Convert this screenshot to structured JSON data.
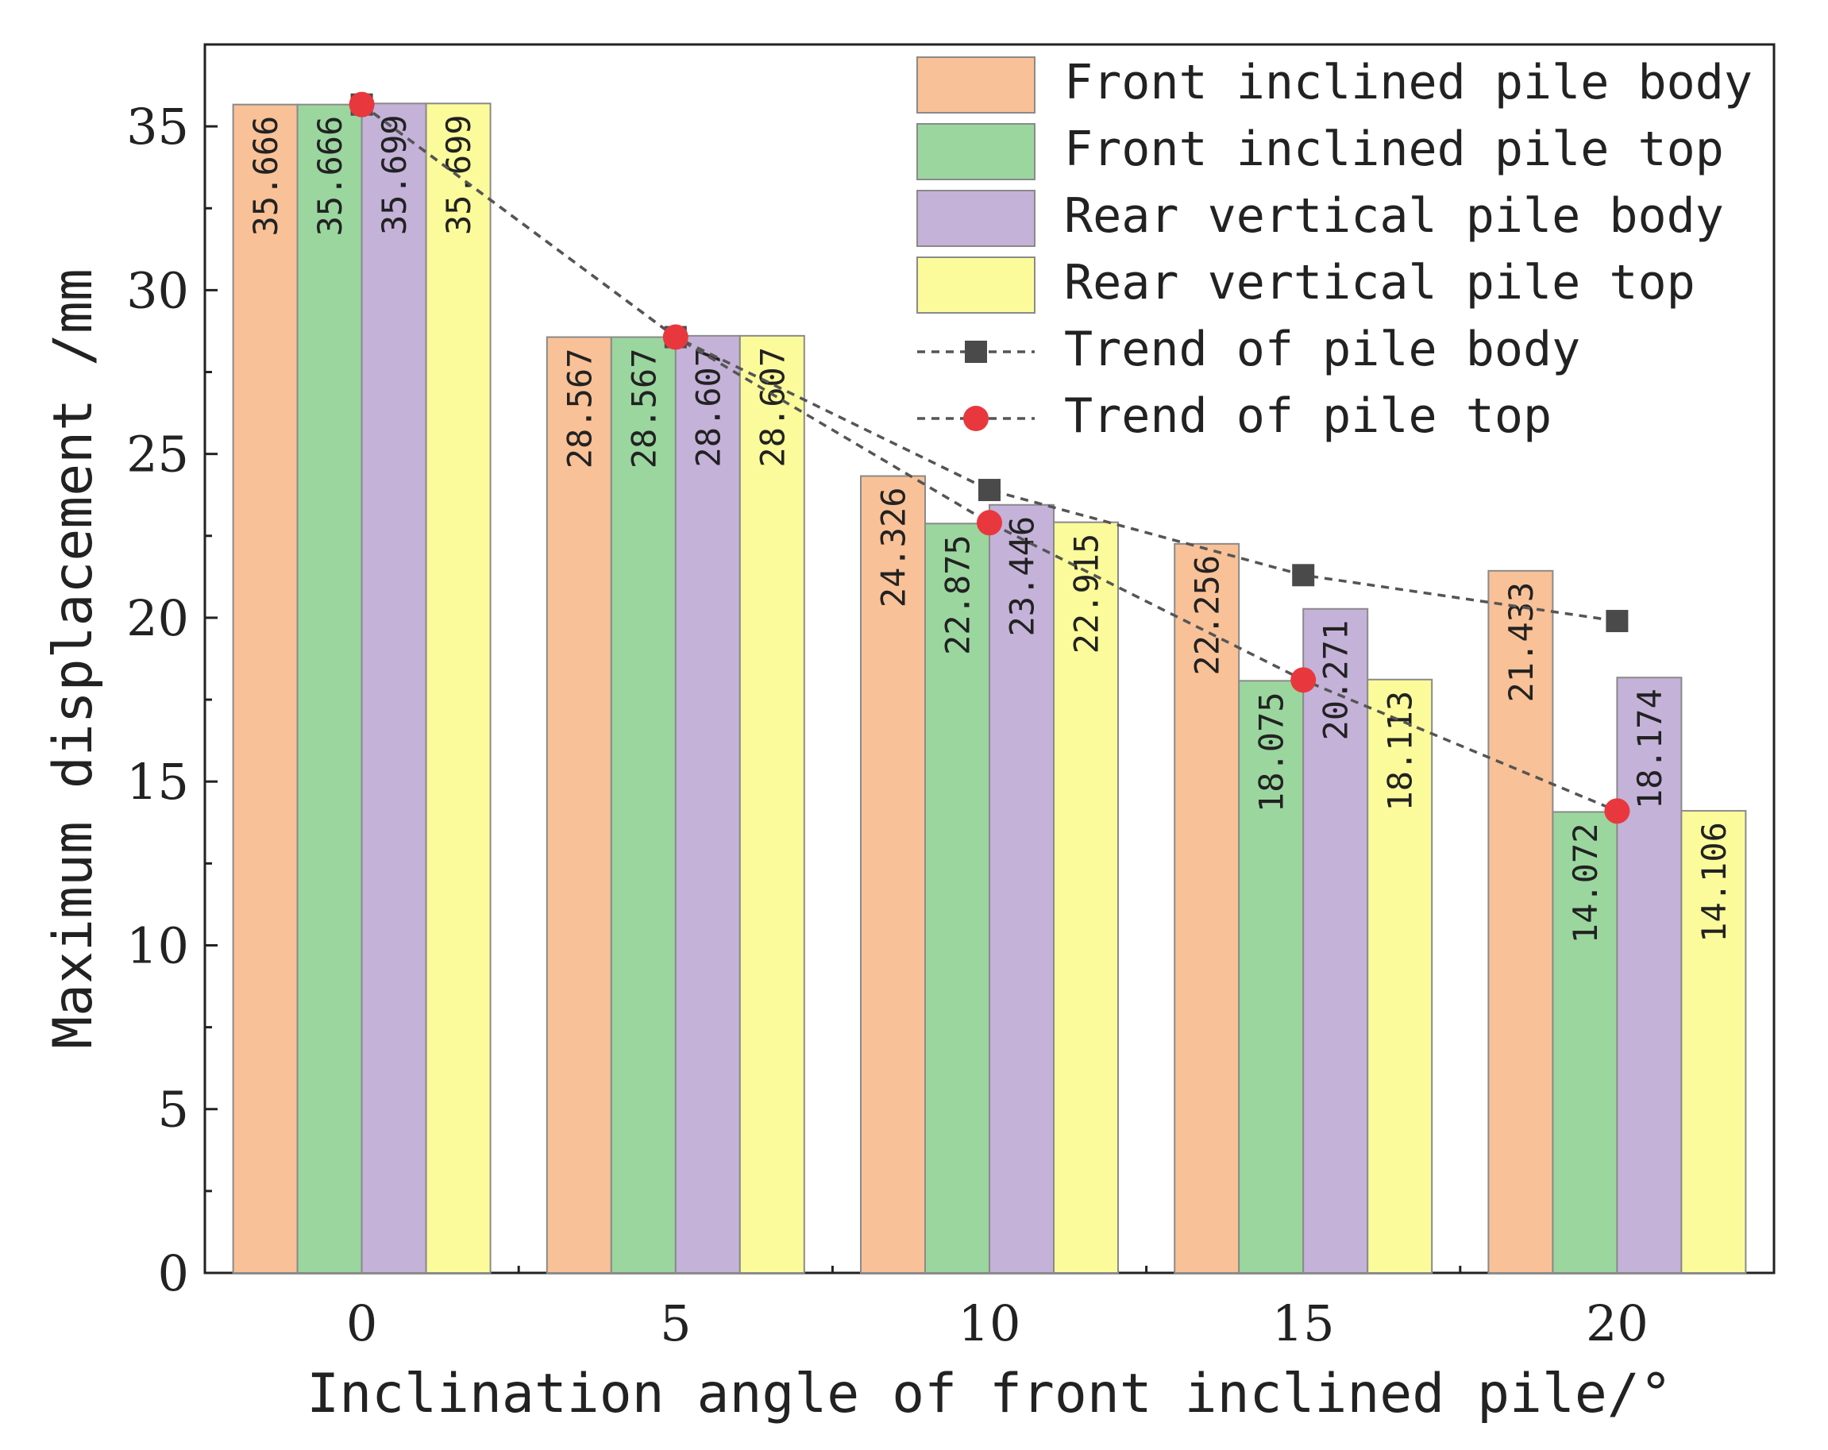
{
  "chart_data": {
    "type": "bar",
    "xlabel": "Inclination angle of front inclined pile/°",
    "ylabel": "Maximum displacement /mm",
    "categories": [
      "0",
      "5",
      "10",
      "15",
      "20"
    ],
    "ylim": [
      0,
      37.5
    ],
    "yticks": [
      0,
      5,
      10,
      15,
      20,
      25,
      30,
      35
    ],
    "grid": false,
    "legend_position": "top-right",
    "series": [
      {
        "name": "Front inclined pile body",
        "color": "#f9c197",
        "values": [
          35.666,
          28.567,
          24.326,
          22.256,
          21.433
        ],
        "labels": [
          "35.666",
          "28.567",
          "24.326",
          "22.256",
          "21.433"
        ]
      },
      {
        "name": "Front inclined pile top",
        "color": "#9bd69f",
        "values": [
          35.666,
          28.567,
          22.875,
          18.075,
          14.072
        ],
        "labels": [
          "35.666",
          "28.567",
          "22.875",
          "18.075",
          "14.072"
        ]
      },
      {
        "name": "Rear vertical pile body",
        "color": "#c4b2d9",
        "values": [
          35.699,
          28.607,
          23.446,
          20.271,
          18.174
        ],
        "labels": [
          "35.699",
          "28.607",
          "23.446",
          "20.271",
          "18.174"
        ]
      },
      {
        "name": "Rear vertical pile top",
        "color": "#fbfb9b",
        "values": [
          35.699,
          28.607,
          22.915,
          18.113,
          14.106
        ],
        "labels": [
          "35.699",
          "28.607",
          "22.915",
          "18.113",
          "14.106"
        ]
      }
    ],
    "trends": [
      {
        "name": "Trend of pile body",
        "marker": "square",
        "color": "#4a4a4a",
        "values": [
          35.666,
          28.567,
          23.9,
          21.3,
          19.9
        ]
      },
      {
        "name": "Trend of pile top",
        "marker": "circle",
        "color": "#e8383d",
        "values": [
          35.666,
          28.567,
          22.9,
          18.1,
          14.1
        ]
      }
    ]
  }
}
